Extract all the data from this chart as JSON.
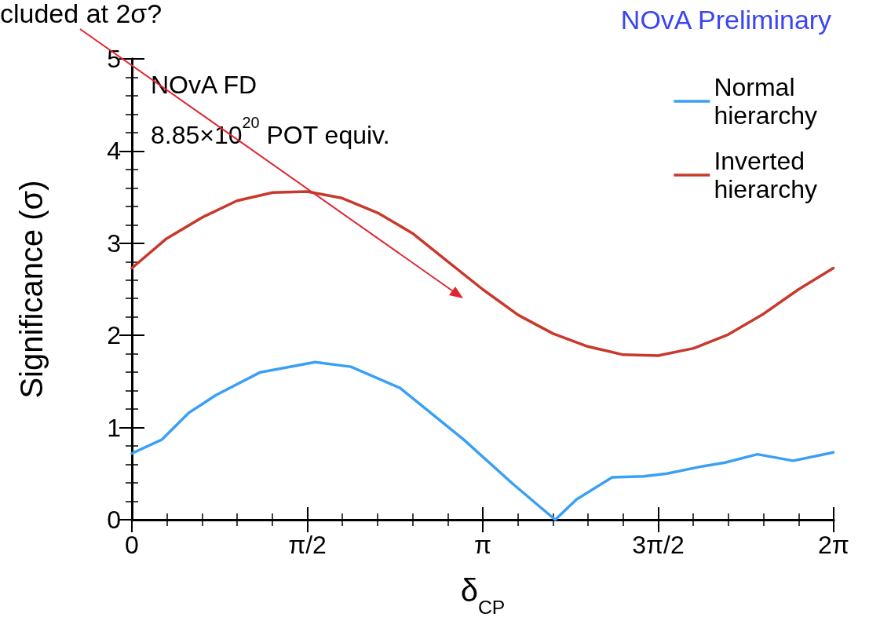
{
  "chart_data": {
    "type": "line",
    "title": "NOvA Preliminary",
    "xlabel": "δ$_{CP}$",
    "ylabel": "Significance (σ)",
    "annotations": [
      "cluded at 2σ?",
      "NOvA FD",
      "8.85×10$^{20}$ POT equiv."
    ],
    "series": [
      {
        "name": "Normal hierarchy",
        "color": "#3aa0f5",
        "x": [
          0,
          0.27,
          0.51,
          0.75,
          1.15,
          1.64,
          1.96,
          2.4,
          2.97,
          3.41,
          3.79,
          3.98,
          4.3,
          4.58,
          4.79,
          5.11,
          5.31,
          5.6,
          5.92,
          6.28
        ],
        "values": [
          0.72,
          0.87,
          1.16,
          1.35,
          1.6,
          1.71,
          1.66,
          1.43,
          0.87,
          0.39,
          0.0,
          0.22,
          0.46,
          0.47,
          0.5,
          0.58,
          0.62,
          0.71,
          0.64,
          0.73
        ]
      },
      {
        "name": "Inverted hierarchy",
        "color": "#c8392b",
        "x": [
          0,
          0.31,
          0.63,
          0.94,
          1.26,
          1.57,
          1.88,
          2.2,
          2.51,
          2.83,
          3.14,
          3.46,
          3.77,
          4.08,
          4.4,
          4.71,
          5.03,
          5.34,
          5.65,
          5.97,
          6.28
        ],
        "values": [
          2.73,
          3.05,
          3.28,
          3.46,
          3.55,
          3.56,
          3.49,
          3.33,
          3.11,
          2.8,
          2.5,
          2.22,
          2.02,
          1.88,
          1.79,
          1.78,
          1.86,
          2.01,
          2.23,
          2.5,
          2.73
        ]
      }
    ],
    "xlim": [
      0,
      6.2832
    ],
    "xticks": [
      {
        "value": 0,
        "label": "0"
      },
      {
        "value": 1.5708,
        "label": "π/2"
      },
      {
        "value": 3.1416,
        "label": "π"
      },
      {
        "value": 4.7124,
        "label": "3π/2"
      },
      {
        "value": 6.2832,
        "label": "2π"
      }
    ],
    "ylim": [
      0,
      5
    ],
    "yticks": [
      0,
      1,
      2,
      3,
      4,
      5
    ],
    "grid": false,
    "legend": "top right",
    "marker": "none",
    "line_style": "solid"
  }
}
